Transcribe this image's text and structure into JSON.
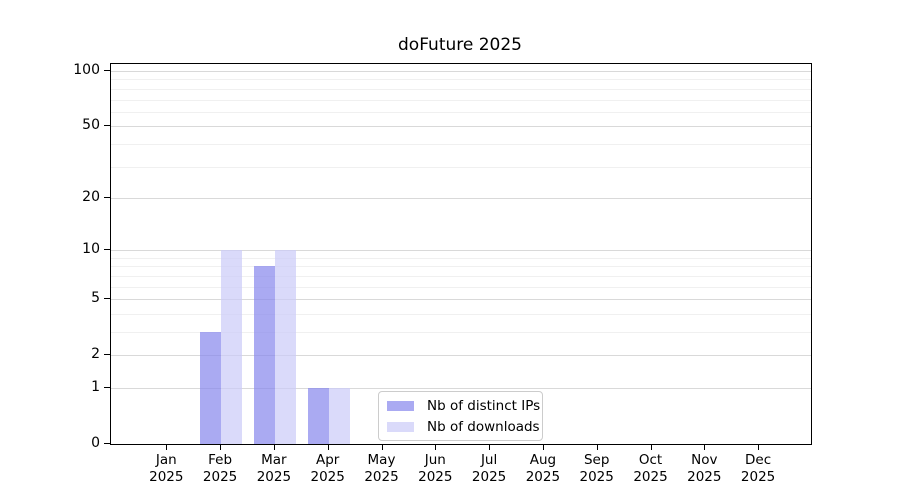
{
  "chart_data": {
    "type": "bar",
    "title": "doFuture 2025",
    "categories": [
      {
        "month": "Jan",
        "year": "2025"
      },
      {
        "month": "Feb",
        "year": "2025"
      },
      {
        "month": "Mar",
        "year": "2025"
      },
      {
        "month": "Apr",
        "year": "2025"
      },
      {
        "month": "May",
        "year": "2025"
      },
      {
        "month": "Jun",
        "year": "2025"
      },
      {
        "month": "Jul",
        "year": "2025"
      },
      {
        "month": "Aug",
        "year": "2025"
      },
      {
        "month": "Sep",
        "year": "2025"
      },
      {
        "month": "Oct",
        "year": "2025"
      },
      {
        "month": "Nov",
        "year": "2025"
      },
      {
        "month": "Dec",
        "year": "2025"
      }
    ],
    "series": [
      {
        "name": "Nb of distinct IPs",
        "color": "rgba(134,134,236,0.7)",
        "values": [
          0,
          3,
          8,
          1,
          0,
          0,
          0,
          0,
          0,
          0,
          0,
          0
        ]
      },
      {
        "name": "Nb of downloads",
        "color": "rgba(202,202,248,0.7)",
        "values": [
          0,
          10,
          10,
          1,
          0,
          0,
          0,
          0,
          0,
          0,
          0,
          0
        ]
      }
    ],
    "y_axis": {
      "scale": "log1p",
      "ticks": [
        0,
        1,
        2,
        5,
        10,
        20,
        50,
        100
      ],
      "minor_gridlines": [
        3,
        4,
        6,
        7,
        8,
        9,
        30,
        40,
        60,
        70,
        80,
        90
      ],
      "max": 100
    },
    "x_axis": {
      "label_lines": 2
    },
    "grid": {
      "major_color": "#d9d9d9",
      "minor_color": "#f0f0f0"
    },
    "spine_color": "#000000",
    "legend": {
      "position": "inside-bottom-center"
    }
  }
}
